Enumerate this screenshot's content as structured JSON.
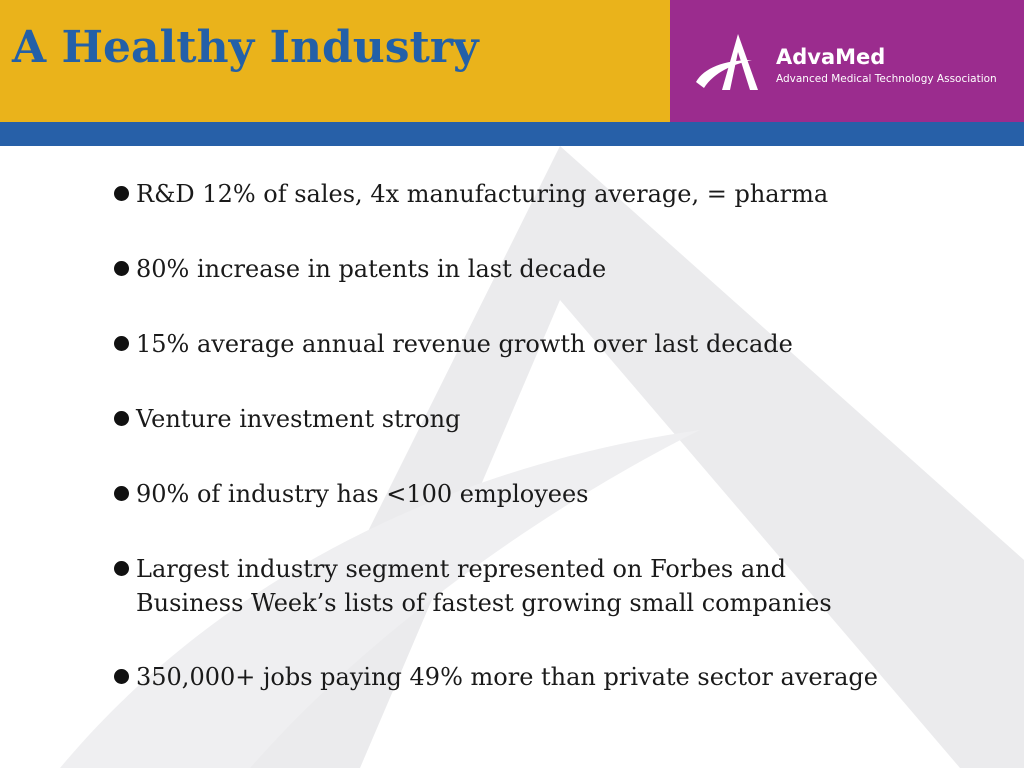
{
  "slide": {
    "title": "A Healthy Industry",
    "logo": {
      "name": "AdvaMed",
      "tagline": "Advanced Medical Technology Association"
    },
    "bullets": [
      "R&D 12% of sales, 4x manufacturing average, = pharma",
      "80% increase in patents in last decade",
      "15% average annual revenue growth over last decade",
      "Venture investment strong",
      "90% of industry has <100 employees",
      "Largest industry segment represented on Forbes and\nBusiness Week’s lists of fastest growing small companies",
      "350,000+ jobs paying 49% more than private sector average"
    ]
  },
  "colors": {
    "header_gold": "#EAB31B",
    "header_purple": "#9B2C8E",
    "band_blue": "#2760A8",
    "title_blue": "#2360A8",
    "watermark_gray": "#E9E9EB",
    "text": "#1a1a1a"
  },
  "icons": {
    "logo_mark": "advamed-a-swoosh-icon",
    "watermark": "advamed-a-watermark-icon",
    "bullet": "bullet-dot-icon"
  }
}
